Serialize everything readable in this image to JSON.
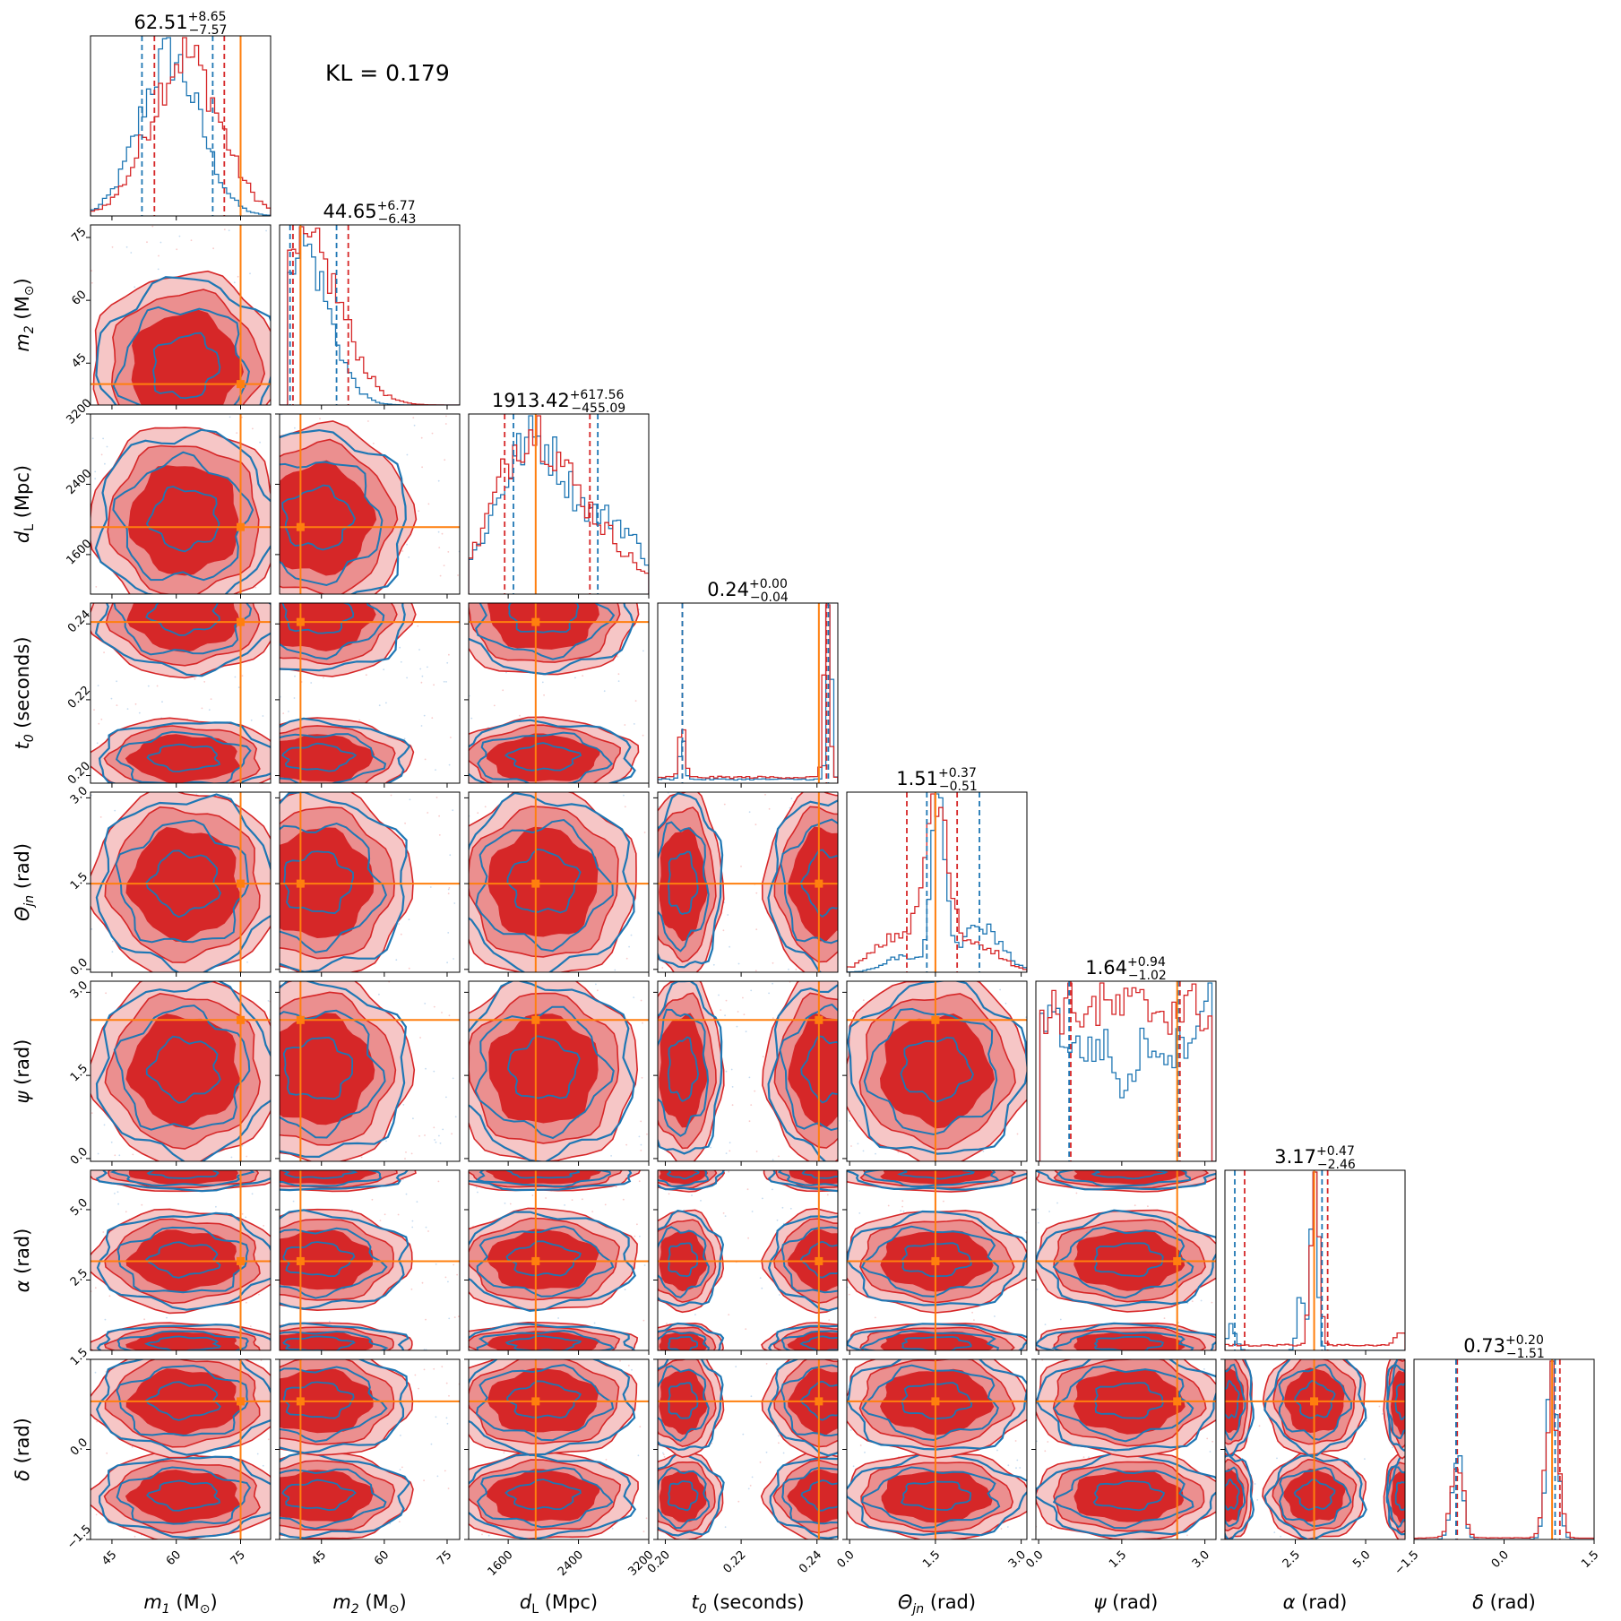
{
  "chart_data": {
    "type": "corner",
    "annotation": "KL = 0.179",
    "colors": {
      "series_a": "#d62728",
      "series_b": "#1f77b4",
      "truth": "#ff7f0e"
    },
    "parameters": [
      {
        "key": "m1",
        "label_sym": "m",
        "label_sub": "1",
        "label_unit": " (M",
        "label_unit_sub": "⊙",
        "label_close": ")",
        "range": [
          40,
          82
        ],
        "ticks": [
          {
            "v": 45,
            "t": "45"
          },
          {
            "v": 60,
            "t": "60"
          },
          {
            "v": 75,
            "t": "75"
          }
        ],
        "truth": 75,
        "median": 62.51,
        "plus": "+8.65",
        "minus": "−7.57",
        "median_text": "62.51",
        "q_a": [
          54.9,
          71.2
        ],
        "q_b": [
          52.0,
          68.5
        ]
      },
      {
        "key": "m2",
        "label_sym": "m",
        "label_sub": "2",
        "label_unit": " (M",
        "label_unit_sub": "⊙",
        "label_close": ")",
        "range": [
          35,
          78
        ],
        "ticks": [
          {
            "v": 45,
            "t": "45"
          },
          {
            "v": 60,
            "t": "60"
          },
          {
            "v": 75,
            "t": "75"
          }
        ],
        "truth": 40,
        "median": 44.65,
        "plus": "+6.77",
        "minus": "−6.43",
        "median_text": "44.65",
        "q_a": [
          38.2,
          51.4
        ],
        "q_b": [
          37.5,
          48.6
        ]
      },
      {
        "key": "dL",
        "label_sym": "d",
        "label_sub": "L",
        "label_unit": " (Mpc)",
        "label_unit_sub": "",
        "label_close": "",
        "range": [
          1150,
          3200
        ],
        "ticks": [
          {
            "v": 1600,
            "t": "1600"
          },
          {
            "v": 2400,
            "t": "2400"
          },
          {
            "v": 3200,
            "t": "3200"
          }
        ],
        "truth": 1913,
        "median": 1913.42,
        "plus": "+617.56",
        "minus": "−455.09",
        "median_text": "1913.42",
        "q_a": [
          1560,
          2530
        ],
        "q_b": [
          1660,
          2620
        ]
      },
      {
        "key": "t0",
        "label_sym": "t",
        "label_sub": "0",
        "label_unit": " (seconds)",
        "label_unit_sub": "",
        "label_close": "",
        "range": [
          0.198,
          0.2455
        ],
        "ticks": [
          {
            "v": 0.2,
            "t": "0.20"
          },
          {
            "v": 0.22,
            "t": "0.22"
          },
          {
            "v": 0.24,
            "t": "0.24"
          }
        ],
        "truth": 0.2405,
        "median": 0.24,
        "plus": "+0.00",
        "minus": "−0.04",
        "median_text": "0.24",
        "q_a": [
          0.2045,
          0.2425
        ],
        "q_b": [
          0.2045,
          0.243
        ]
      },
      {
        "key": "thetajn",
        "label_sym": "Θ",
        "label_sub": "jn",
        "label_unit": " (rad)",
        "label_unit_sub": "",
        "label_close": "",
        "range": [
          -0.05,
          3.1
        ],
        "ticks": [
          {
            "v": 0.0,
            "t": "0.0"
          },
          {
            "v": 1.5,
            "t": "1.5"
          },
          {
            "v": 3.0,
            "t": "3.0"
          }
        ],
        "truth": 1.5,
        "median": 1.51,
        "plus": "+0.37",
        "minus": "−0.51",
        "median_text": "1.51",
        "q_a": [
          1.0,
          1.88
        ],
        "q_b": [
          1.35,
          2.27
        ]
      },
      {
        "key": "psi",
        "label_sym": "ψ",
        "label_sub": "",
        "label_unit": " (rad)",
        "label_unit_sub": "",
        "label_close": "",
        "range": [
          -0.05,
          3.2
        ],
        "ticks": [
          {
            "v": 0.0,
            "t": "0.0"
          },
          {
            "v": 1.5,
            "t": "1.5"
          },
          {
            "v": 3.0,
            "t": "3.0"
          }
        ],
        "truth": 2.5,
        "median": 1.64,
        "plus": "+0.94",
        "minus": "−1.02",
        "median_text": "1.64",
        "q_a": [
          0.58,
          2.55
        ],
        "q_b": [
          0.55,
          2.52
        ]
      },
      {
        "key": "alpha",
        "label_sym": "α",
        "label_sub": "",
        "label_unit": " (rad)",
        "label_unit_sub": "",
        "label_close": "",
        "range": [
          0.0,
          6.4
        ],
        "ticks": [
          {
            "v": 2.5,
            "t": "2.5"
          },
          {
            "v": 5.0,
            "t": "5.0"
          }
        ],
        "truth": 3.17,
        "median": 3.17,
        "plus": "+0.47",
        "minus": "−2.46",
        "median_text": "3.17",
        "q_a": [
          0.7,
          3.65
        ],
        "q_b": [
          0.35,
          3.45
        ]
      },
      {
        "key": "delta",
        "label_sym": "δ",
        "label_sub": "",
        "label_unit": " (rad)",
        "label_unit_sub": "",
        "label_close": "",
        "range": [
          -1.5,
          1.5
        ],
        "ticks": [
          {
            "v": -1.5,
            "t": "−1.5"
          },
          {
            "v": 0.0,
            "t": "0.0"
          },
          {
            "v": 1.5,
            "t": "1.5"
          }
        ],
        "truth": 0.8,
        "median": 0.73,
        "plus": "+0.20",
        "minus": "−1.51",
        "median_text": "0.73",
        "q_a": [
          -0.78,
          0.93
        ],
        "q_b": [
          -0.8,
          0.85
        ]
      }
    ]
  }
}
